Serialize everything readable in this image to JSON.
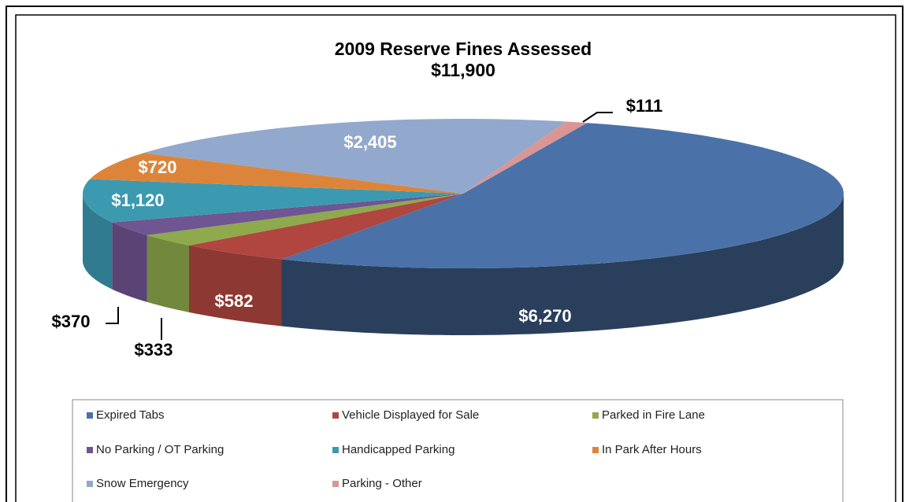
{
  "chart_data": {
    "type": "pie3d",
    "title": "2009 Reserve Fines Assessed",
    "subtitle": "$11,900",
    "categories": [
      "Expired Tabs",
      "Vehicle Displayed for Sale",
      "Parked in Fire Lane",
      "No Parking / OT Parking",
      "Handicapped Parking",
      "In Park After Hours",
      "Snow Emergency",
      "Parking - Other"
    ],
    "values": [
      6270,
      582,
      333,
      370,
      1120,
      720,
      2405,
      111
    ],
    "value_labels": [
      "$6,270",
      "$582",
      "$333",
      "$370",
      "$1,120",
      "$720",
      "$2,405",
      "$111"
    ],
    "colors": [
      "#4a72a8",
      "#b0463f",
      "#8eaa4c",
      "#6f5592",
      "#3c9ab0",
      "#dc853a",
      "#93a8cd",
      "#d99694"
    ]
  }
}
